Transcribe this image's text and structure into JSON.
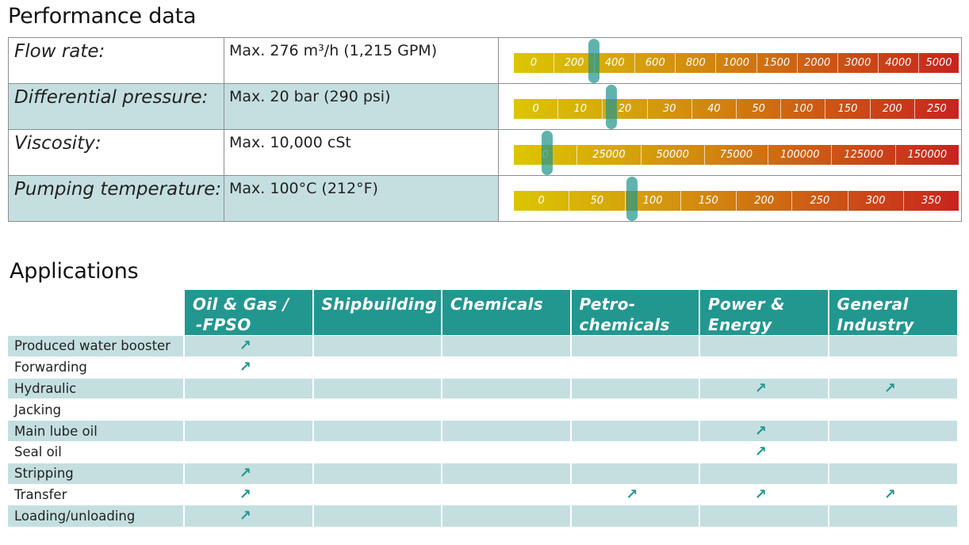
{
  "performance": {
    "title": "Performance data",
    "rows": [
      {
        "label": "Flow rate:",
        "value": "Max. 276 m³/h (1,215 GPM)",
        "scale": [
          "0",
          "200",
          "400",
          "600",
          "800",
          "1000",
          "1500",
          "2000",
          "3000",
          "4000",
          "5000"
        ],
        "marker_scale_fraction": 0.18
      },
      {
        "label": "Differential pressure:",
        "value": "Max. 20 bar (290 psi)",
        "scale": [
          "0",
          "10",
          "20",
          "30",
          "40",
          "50",
          "100",
          "150",
          "200",
          "250"
        ],
        "marker_scale_fraction": 0.22
      },
      {
        "label": "Viscosity:",
        "value": "Max. 10,000 cSt",
        "scale": [
          "0",
          "25000",
          "50000",
          "75000",
          "100000",
          "125000",
          "150000"
        ],
        "marker_scale_fraction": 0.075
      },
      {
        "label": "Pumping temperature:",
        "value": "Max. 100°C (212°F)",
        "scale": [
          "0",
          "50",
          "100",
          "150",
          "200",
          "250",
          "300",
          "350"
        ],
        "marker_scale_fraction": 0.265
      }
    ],
    "gauge_colors": [
      "#dcc600",
      "#d2840f",
      "#c8231e"
    ]
  },
  "applications": {
    "title": "Applications",
    "industries": [
      {
        "line1": "Oil & Gas /",
        "line2": "-FPSO"
      },
      {
        "line1": "Shipbuilding",
        "line2": ""
      },
      {
        "line1": "Chemicals",
        "line2": ""
      },
      {
        "line1": "Petro-",
        "line2": "chemicals"
      },
      {
        "line1": "Power &",
        "line2": "Energy"
      },
      {
        "line1": "General",
        "line2": "Industry"
      }
    ],
    "mark_glyph": "↗",
    "rows": [
      {
        "name": "Produced water booster",
        "marks": [
          true,
          false,
          false,
          false,
          false,
          false
        ]
      },
      {
        "name": "Forwarding",
        "marks": [
          true,
          false,
          false,
          false,
          false,
          false
        ]
      },
      {
        "name": "Hydraulic",
        "marks": [
          false,
          false,
          false,
          false,
          true,
          true
        ]
      },
      {
        "name": "Jacking",
        "marks": [
          false,
          false,
          false,
          false,
          false,
          false
        ]
      },
      {
        "name": "Main lube oil",
        "marks": [
          false,
          false,
          false,
          false,
          true,
          false
        ]
      },
      {
        "name": "Seal oil",
        "marks": [
          false,
          false,
          false,
          false,
          true,
          false
        ]
      },
      {
        "name": "Stripping",
        "marks": [
          true,
          false,
          false,
          false,
          false,
          false
        ]
      },
      {
        "name": "Transfer",
        "marks": [
          true,
          false,
          false,
          true,
          true,
          true
        ]
      },
      {
        "name": "Loading/unloading",
        "marks": [
          true,
          false,
          false,
          false,
          false,
          false
        ]
      }
    ],
    "header_color": "#22978f",
    "shade_color": "#c5dfe0"
  }
}
